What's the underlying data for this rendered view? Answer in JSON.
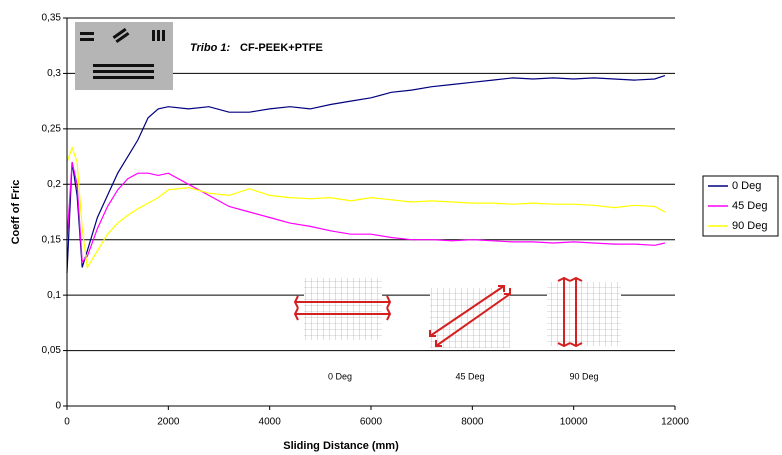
{
  "chart_data": {
    "type": "line",
    "x_label": "Sliding Distance (mm)",
    "y_label": "Coeff of Fric",
    "annotations": [
      "Tribo 1:",
      "CF-PEEK+PTFE",
      "0 Deg",
      "45 Deg",
      "90 Deg"
    ],
    "x": [
      0,
      100,
      200,
      300,
      400,
      600,
      800,
      1000,
      1200,
      1400,
      1600,
      1800,
      2000,
      2400,
      2800,
      3200,
      3600,
      4000,
      4400,
      4800,
      5200,
      5600,
      6000,
      6400,
      6800,
      7200,
      7600,
      8000,
      8400,
      8800,
      9200,
      9600,
      10000,
      10400,
      10800,
      11200,
      11600,
      11800
    ],
    "series": [
      {
        "name": "0 Deg",
        "color": "#000080",
        "values": [
          0.12,
          0.22,
          0.19,
          0.125,
          0.14,
          0.17,
          0.19,
          0.21,
          0.225,
          0.24,
          0.26,
          0.268,
          0.27,
          0.268,
          0.27,
          0.265,
          0.265,
          0.268,
          0.27,
          0.268,
          0.272,
          0.275,
          0.278,
          0.283,
          0.285,
          0.288,
          0.29,
          0.292,
          0.294,
          0.296,
          0.295,
          0.296,
          0.295,
          0.296,
          0.295,
          0.294,
          0.295,
          0.298
        ]
      },
      {
        "name": "45 Deg",
        "color": "#ff00ff",
        "values": [
          0.15,
          0.22,
          0.2,
          0.13,
          0.135,
          0.16,
          0.18,
          0.195,
          0.205,
          0.21,
          0.21,
          0.208,
          0.21,
          0.2,
          0.19,
          0.18,
          0.175,
          0.17,
          0.165,
          0.162,
          0.158,
          0.155,
          0.155,
          0.152,
          0.15,
          0.15,
          0.149,
          0.15,
          0.149,
          0.148,
          0.148,
          0.147,
          0.148,
          0.147,
          0.146,
          0.146,
          0.145,
          0.147
        ]
      },
      {
        "name": "90 Deg",
        "color": "#ffff00",
        "values": [
          0.22,
          0.233,
          0.22,
          0.16,
          0.125,
          0.14,
          0.155,
          0.165,
          0.172,
          0.178,
          0.183,
          0.188,
          0.195,
          0.197,
          0.192,
          0.19,
          0.196,
          0.19,
          0.188,
          0.187,
          0.188,
          0.185,
          0.188,
          0.186,
          0.184,
          0.185,
          0.184,
          0.183,
          0.183,
          0.182,
          0.183,
          0.182,
          0.182,
          0.181,
          0.179,
          0.181,
          0.18,
          0.175
        ]
      }
    ],
    "xlim": [
      0,
      12000
    ],
    "xticks": [
      0,
      2000,
      4000,
      6000,
      8000,
      10000,
      12000
    ],
    "ylim": [
      0,
      0.35
    ],
    "yticks": [
      0,
      {
        "value": 0.05,
        "label": "0,05"
      },
      {
        "value": 0.1,
        "label": "0,1"
      },
      {
        "value": 0.15,
        "label": "0,15"
      },
      {
        "value": 0.2,
        "label": "0,2"
      },
      {
        "value": 0.25,
        "label": "0,25"
      },
      {
        "value": 0.3,
        "label": "0,3"
      },
      {
        "value": 0.35,
        "label": "0,35"
      }
    ],
    "grid": true,
    "legend": "right"
  }
}
